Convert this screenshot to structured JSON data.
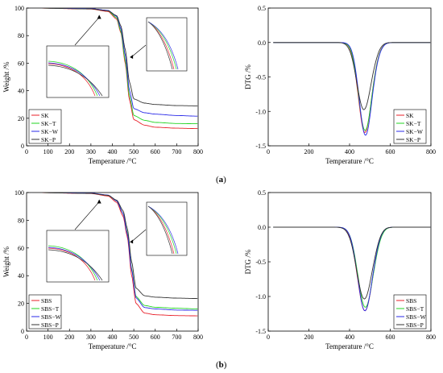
{
  "panel_labels": {
    "a": "a",
    "b": "b"
  },
  "chart_data": [
    {
      "id": "tg-a",
      "type": "line",
      "title": "",
      "xlabel": "Temperature /°C",
      "ylabel": "Weight /%",
      "xlim": [
        0,
        800
      ],
      "ylim": [
        0,
        100
      ],
      "xticks": [
        0,
        100,
        200,
        300,
        400,
        500,
        600,
        700,
        800
      ],
      "yticks": [
        0,
        20,
        40,
        60,
        80,
        100
      ],
      "legend_position": "bottom-left",
      "insets": 2,
      "series": [
        {
          "name": "SK",
          "color": "#e8202a",
          "points": [
            [
              25,
              100
            ],
            [
              300,
              99.3
            ],
            [
              380,
              97.5
            ],
            [
              420,
              92
            ],
            [
              440,
              82
            ],
            [
              460,
              60
            ],
            [
              480,
              33
            ],
            [
              500,
              19
            ],
            [
              550,
              15
            ],
            [
              600,
              13.5
            ],
            [
              700,
              12.8
            ],
            [
              800,
              12.5
            ]
          ]
        },
        {
          "name": "SK−T",
          "color": "#22d422",
          "points": [
            [
              25,
              100
            ],
            [
              300,
              99.5
            ],
            [
              380,
              98
            ],
            [
              420,
              93
            ],
            [
              440,
              83
            ],
            [
              460,
              62
            ],
            [
              480,
              36
            ],
            [
              500,
              22
            ],
            [
              550,
              18.5
            ],
            [
              600,
              17
            ],
            [
              700,
              16.2
            ],
            [
              800,
              16
            ]
          ]
        },
        {
          "name": "SK−W",
          "color": "#2a2ae8",
          "points": [
            [
              25,
              100
            ],
            [
              300,
              99.6
            ],
            [
              380,
              98.3
            ],
            [
              420,
              94
            ],
            [
              440,
              85
            ],
            [
              460,
              66
            ],
            [
              480,
              40
            ],
            [
              500,
              27
            ],
            [
              550,
              24
            ],
            [
              600,
              23
            ],
            [
              700,
              22
            ],
            [
              800,
              21.5
            ]
          ]
        },
        {
          "name": "SK−P",
          "color": "#333333",
          "points": [
            [
              25,
              100
            ],
            [
              300,
              99.4
            ],
            [
              380,
              98
            ],
            [
              420,
              94.5
            ],
            [
              440,
              87
            ],
            [
              460,
              70
            ],
            [
              480,
              46
            ],
            [
              500,
              34
            ],
            [
              550,
              31
            ],
            [
              600,
              30
            ],
            [
              700,
              29.2
            ],
            [
              800,
              29
            ]
          ]
        }
      ]
    },
    {
      "id": "dtg-a",
      "type": "line",
      "title": "",
      "xlabel": "Temperature /°C",
      "ylabel": "DTG /%",
      "xlim": [
        0,
        800
      ],
      "ylim": [
        -1.5,
        0.5
      ],
      "xticks": [
        0,
        200,
        400,
        600,
        800
      ],
      "yticks": [
        0.5,
        0.0,
        -0.5,
        -1.0,
        -1.5
      ],
      "legend_position": "bottom-right",
      "series": [
        {
          "name": "SK",
          "color": "#e8202a",
          "peak": [
            475,
            -1.3
          ],
          "width": 32
        },
        {
          "name": "SK−T",
          "color": "#22d422",
          "peak": [
            476,
            -1.27
          ],
          "width": 32
        },
        {
          "name": "SK−W",
          "color": "#2a2ae8",
          "peak": [
            478,
            -1.34
          ],
          "width": 31
        },
        {
          "name": "SK−P",
          "color": "#333333",
          "peak": [
            470,
            -0.97
          ],
          "width": 34
        }
      ]
    },
    {
      "id": "tg-b",
      "type": "line",
      "title": "",
      "xlabel": "Temperature /°C",
      "ylabel": "Weight /%",
      "xlim": [
        0,
        800
      ],
      "ylim": [
        0,
        100
      ],
      "xticks": [
        0,
        100,
        200,
        300,
        400,
        500,
        600,
        700,
        800
      ],
      "yticks": [
        0,
        20,
        40,
        60,
        80,
        100
      ],
      "legend_position": "bottom-left",
      "insets": 2,
      "series": [
        {
          "name": "SBS",
          "color": "#e8202a",
          "points": [
            [
              25,
              100
            ],
            [
              300,
              99.3
            ],
            [
              380,
              97.5
            ],
            [
              420,
              93
            ],
            [
              450,
              83
            ],
            [
              470,
              68
            ],
            [
              490,
              40
            ],
            [
              510,
              20
            ],
            [
              550,
              13
            ],
            [
              600,
              11.8
            ],
            [
              700,
              11.2
            ],
            [
              800,
              11
            ]
          ]
        },
        {
          "name": "SBS−T",
          "color": "#22d422",
          "points": [
            [
              25,
              100
            ],
            [
              300,
              99.5
            ],
            [
              380,
              98
            ],
            [
              420,
              94
            ],
            [
              450,
              85
            ],
            [
              470,
              71
            ],
            [
              490,
              45
            ],
            [
              510,
              25
            ],
            [
              550,
              18.5
            ],
            [
              600,
              17.2
            ],
            [
              700,
              16.5
            ],
            [
              800,
              16
            ]
          ]
        },
        {
          "name": "SBS−W",
          "color": "#2a2ae8",
          "points": [
            [
              25,
              100
            ],
            [
              300,
              99.6
            ],
            [
              380,
              98.2
            ],
            [
              420,
              94
            ],
            [
              450,
              85
            ],
            [
              470,
              70
            ],
            [
              490,
              44
            ],
            [
              510,
              24
            ],
            [
              550,
              17
            ],
            [
              600,
              16
            ],
            [
              700,
              15.2
            ],
            [
              800,
              15
            ]
          ]
        },
        {
          "name": "SBS−P",
          "color": "#333333",
          "points": [
            [
              25,
              100
            ],
            [
              300,
              99.4
            ],
            [
              380,
              98
            ],
            [
              420,
              94.5
            ],
            [
              450,
              87
            ],
            [
              470,
              74
            ],
            [
              490,
              50
            ],
            [
              510,
              31
            ],
            [
              550,
              25.5
            ],
            [
              600,
              24.5
            ],
            [
              700,
              23.8
            ],
            [
              800,
              23.5
            ]
          ]
        }
      ]
    },
    {
      "id": "dtg-b",
      "type": "line",
      "title": "",
      "xlabel": "Temperature /°C",
      "ylabel": "DTG /%",
      "xlim": [
        0,
        800
      ],
      "ylim": [
        -1.5,
        0.5
      ],
      "xticks": [
        0,
        200,
        400,
        600,
        800
      ],
      "yticks": [
        0.5,
        0.0,
        -0.5,
        -1.0,
        -1.5
      ],
      "legend_position": "bottom-right",
      "series": [
        {
          "name": "SBS",
          "color": "#e8202a",
          "peak": [
            475,
            -1.2
          ],
          "width": 36
        },
        {
          "name": "SBS−T",
          "color": "#22d422",
          "peak": [
            477,
            -1.15
          ],
          "width": 36
        },
        {
          "name": "SBS−W",
          "color": "#2a2ae8",
          "peak": [
            475,
            -1.2
          ],
          "width": 35
        },
        {
          "name": "SBS−P",
          "color": "#333333",
          "peak": [
            472,
            -1.03
          ],
          "width": 37
        }
      ]
    }
  ]
}
